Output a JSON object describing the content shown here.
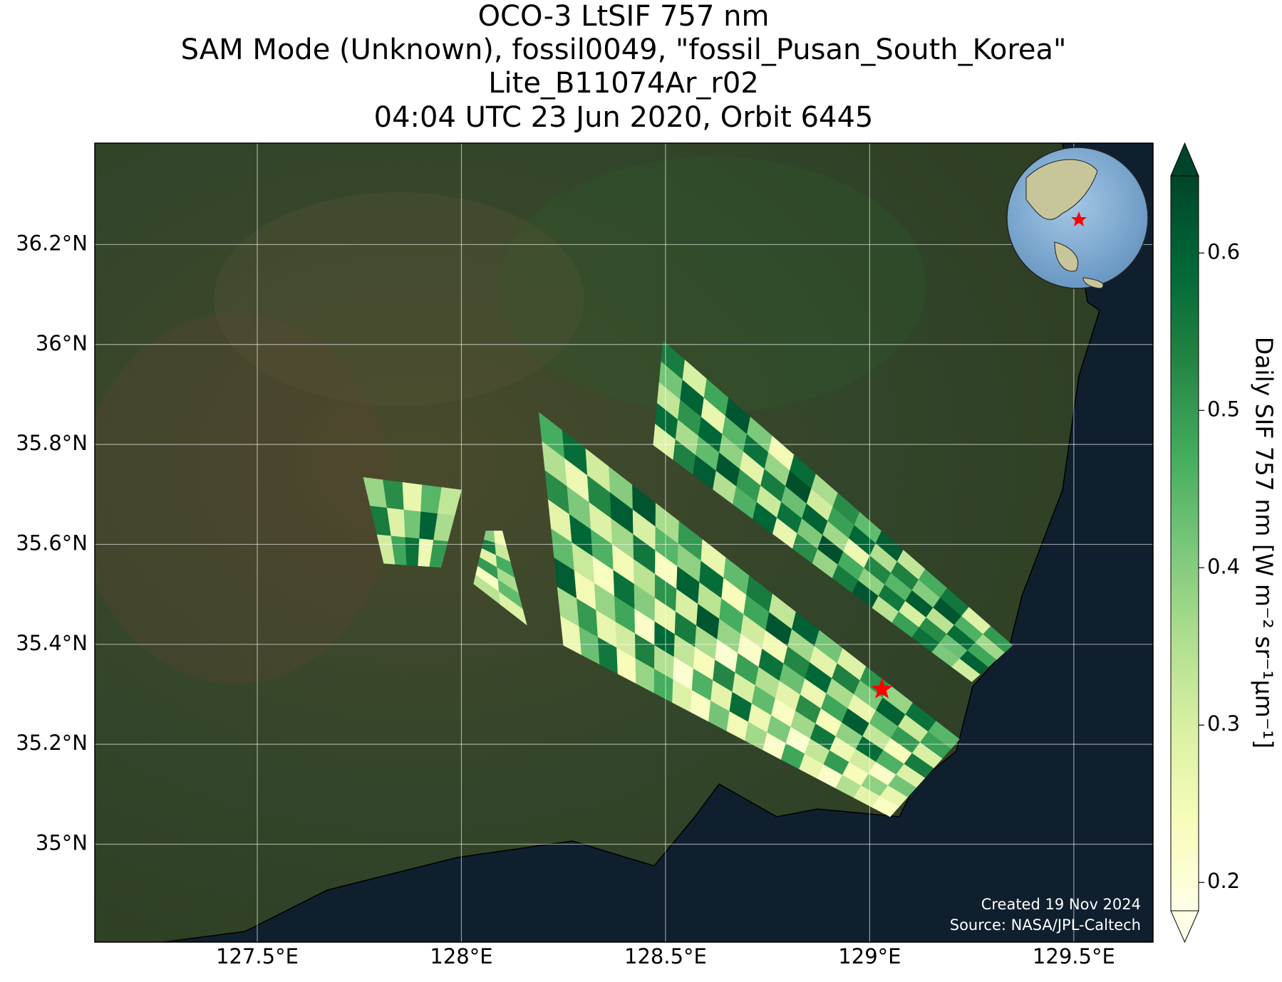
{
  "chart_data": {
    "type": "map",
    "title": [
      "OCO-3 LtSIF 757 nm",
      "SAM Mode (Unknown), fossil0049, \"fossil_Pusan_South_Korea\"",
      "Lite_B11074Ar_r02",
      "04:04 UTC 23 Jun 2020, Orbit 6445"
    ],
    "xlim": [
      127.102,
      129.694
    ],
    "ylim": [
      34.804,
      36.403
    ],
    "xticks": [
      {
        "value": 127.5,
        "label": "127.5°E"
      },
      {
        "value": 128,
        "label": "128°E"
      },
      {
        "value": 128.5,
        "label": "128.5°E"
      },
      {
        "value": 129,
        "label": "129°E"
      },
      {
        "value": 129.5,
        "label": "129.5°E"
      }
    ],
    "yticks": [
      {
        "value": 35,
        "label": "35°N"
      },
      {
        "value": 35.2,
        "label": "35.2°N"
      },
      {
        "value": 35.4,
        "label": "35.4°N"
      },
      {
        "value": 35.6,
        "label": "35.6°N"
      },
      {
        "value": 35.8,
        "label": "35.8°N"
      },
      {
        "value": 36,
        "label": "36°N"
      },
      {
        "value": 36.2,
        "label": "36.2°N"
      }
    ],
    "grid": true,
    "colorbar": {
      "label": "Daily SIF 757 nm [W m⁻² sr⁻¹μm⁻¹]",
      "clim": [
        0.182,
        0.649
      ],
      "ticks": [
        0.2,
        0.3,
        0.4,
        0.5,
        0.6
      ]
    },
    "colormap": [
      "#ffffe5",
      "#f7fcb9",
      "#d9f0a3",
      "#addd8e",
      "#78c679",
      "#41ab5d",
      "#238443",
      "#006837",
      "#004529"
    ],
    "site": {
      "lon": 129.03,
      "lat": 35.31,
      "color": "#ff0000"
    },
    "swaths": [
      {
        "corners": [
          [
            128.494,
            36.007
          ],
          [
            129.35,
            35.398
          ],
          [
            129.25,
            35.325
          ],
          [
            128.47,
            35.799
          ]
        ],
        "values": [
          [
            0.55,
            0.3,
            0.48,
            0.62,
            0.41,
            0.25,
            0.58,
            0.36,
            0.52,
            0.44,
            0.61,
            0.33,
            0.47,
            0.56,
            0.29,
            0.5
          ],
          [
            0.42,
            0.6,
            0.27,
            0.45,
            0.57,
            0.38,
            0.63,
            0.31,
            0.49,
            0.59,
            0.35,
            0.54,
            0.4,
            0.62,
            0.46,
            0.37
          ],
          [
            0.33,
            0.51,
            0.59,
            0.39,
            0.28,
            0.55,
            0.43,
            0.6,
            0.37,
            0.26,
            0.53,
            0.45,
            0.61,
            0.34,
            0.58,
            0.48
          ],
          [
            0.58,
            0.36,
            0.44,
            0.62,
            0.5,
            0.32,
            0.57,
            0.41,
            0.63,
            0.47,
            0.39,
            0.56,
            0.3,
            0.52,
            0.43,
            0.6
          ],
          [
            0.29,
            0.54,
            0.61,
            0.35,
            0.46,
            0.59,
            0.27,
            0.52,
            0.38,
            0.55,
            0.62,
            0.34,
            0.49,
            0.57,
            0.41,
            0.31
          ]
        ]
      },
      {
        "corners": [
          [
            128.19,
            35.864
          ],
          [
            129.22,
            35.21
          ],
          [
            129.05,
            35.055
          ],
          [
            128.25,
            35.398
          ]
        ],
        "values": [
          [
            0.47,
            0.58,
            0.31,
            0.4,
            0.62,
            0.36,
            0.5,
            0.27,
            0.44,
            0.55,
            0.33,
            0.6,
            0.42,
            0.29,
            0.51,
            0.38,
            0.57,
            0.45
          ],
          [
            0.35,
            0.26,
            0.53,
            0.61,
            0.3,
            0.45,
            0.39,
            0.58,
            0.24,
            0.48,
            0.62,
            0.37,
            0.28,
            0.54,
            0.41,
            0.6,
            0.32,
            0.49
          ],
          [
            0.52,
            0.41,
            0.29,
            0.37,
            0.56,
            0.23,
            0.6,
            0.34,
            0.47,
            0.31,
            0.25,
            0.53,
            0.59,
            0.36,
            0.27,
            0.44,
            0.5,
            0.3
          ],
          [
            0.28,
            0.59,
            0.46,
            0.25,
            0.34,
            0.51,
            0.3,
            0.62,
            0.38,
            0.22,
            0.57,
            0.43,
            0.26,
            0.48,
            0.61,
            0.33,
            0.24,
            0.55
          ],
          [
            0.44,
            0.32,
            0.23,
            0.57,
            0.4,
            0.27,
            0.55,
            0.36,
            0.21,
            0.49,
            0.35,
            0.28,
            0.52,
            0.24,
            0.39,
            0.58,
            0.46,
            0.29
          ],
          [
            0.61,
            0.25,
            0.38,
            0.48,
            0.22,
            0.59,
            0.33,
            0.24,
            0.53,
            0.3,
            0.44,
            0.23,
            0.37,
            0.56,
            0.26,
            0.31,
            0.22,
            0.42
          ],
          [
            0.36,
            0.5,
            0.27,
            0.31,
            0.54,
            0.35,
            0.21,
            0.46,
            0.28,
            0.58,
            0.26,
            0.41,
            0.21,
            0.33,
            0.5,
            0.24,
            0.39,
            0.27
          ],
          [
            0.26,
            0.43,
            0.56,
            0.24,
            0.38,
            0.47,
            0.29,
            0.23,
            0.42,
            0.25,
            0.37,
            0.22,
            0.48,
            0.27,
            0.22,
            0.35,
            0.28,
            0.23
          ]
        ]
      },
      {
        "corners": [
          [
            127.76,
            35.734
          ],
          [
            128.0,
            35.709
          ],
          [
            127.95,
            35.554
          ],
          [
            127.81,
            35.562
          ]
        ],
        "values": [
          [
            0.38,
            0.52,
            0.27,
            0.45,
            0.33
          ],
          [
            0.55,
            0.29,
            0.42,
            0.6,
            0.36
          ],
          [
            0.31,
            0.48,
            0.57,
            0.26,
            0.5
          ]
        ]
      },
      {
        "corners": [
          [
            128.06,
            35.627
          ],
          [
            128.1,
            35.627
          ],
          [
            128.16,
            35.439
          ],
          [
            128.03,
            35.521
          ]
        ],
        "values": [
          [
            0.4,
            0.25
          ],
          [
            0.55,
            0.32
          ],
          [
            0.28,
            0.47
          ],
          [
            0.5,
            0.36
          ],
          [
            0.23,
            0.44
          ],
          [
            0.34,
            0.29
          ]
        ]
      }
    ],
    "credits": [
      "Created 19 Nov 2024",
      "Source: NASA/JPL-Caltech"
    ]
  }
}
